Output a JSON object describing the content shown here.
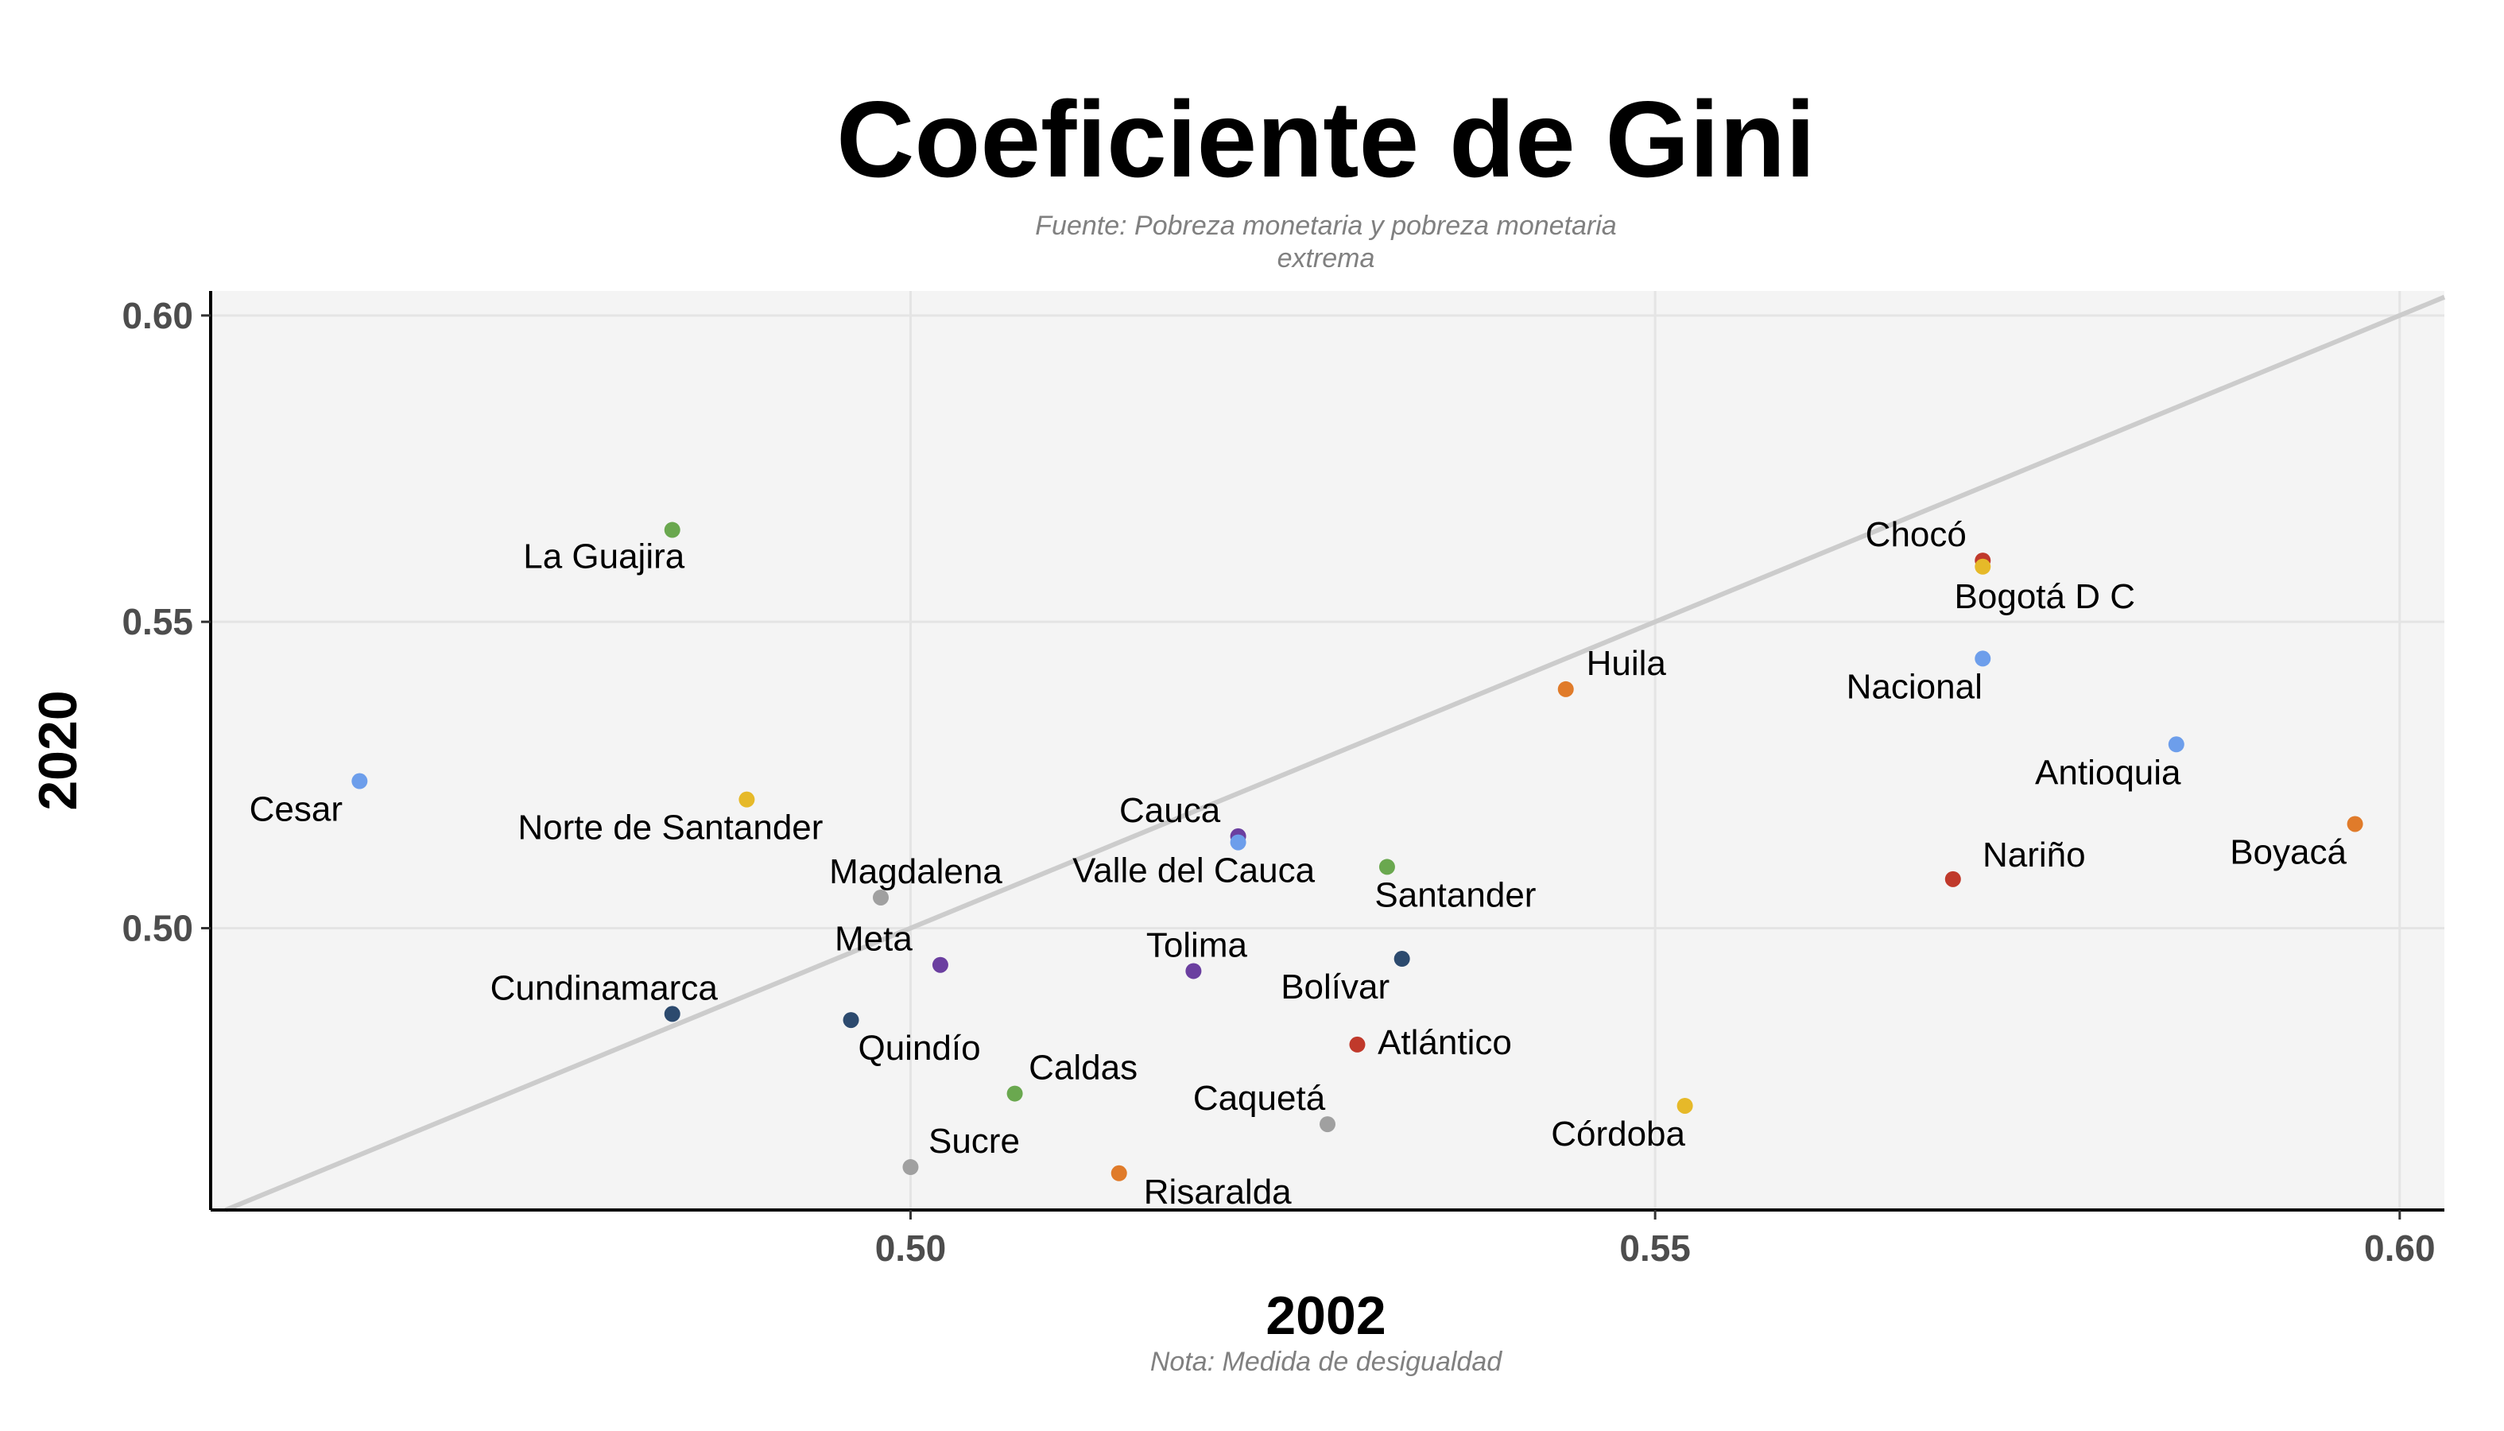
{
  "chart_data": {
    "type": "scatter",
    "title": "Coeficiente de Gini",
    "subtitle_lines": [
      "Fuente: Pobreza monetaria y pobreza monetaria",
      "extrema"
    ],
    "xlabel": "2002",
    "ylabel": "2020",
    "caption": "Nota: Medida de desigualdad",
    "xlim": [
      0.453,
      0.603
    ],
    "ylim": [
      0.454,
      0.604
    ],
    "x_ticks": [
      {
        "value": 0.5,
        "label": "0.50"
      },
      {
        "value": 0.55,
        "label": "0.55"
      },
      {
        "value": 0.6,
        "label": "0.60"
      }
    ],
    "y_ticks": [
      {
        "value": 0.5,
        "label": "0.50"
      },
      {
        "value": 0.55,
        "label": "0.55"
      },
      {
        "value": 0.6,
        "label": "0.60"
      }
    ],
    "grid": true,
    "reference_line": {
      "type": "identity",
      "color": "#cccccc"
    },
    "panel_background": "#f4f4f4",
    "points": [
      {
        "label": "La Guajira",
        "x": 0.484,
        "y": 0.565,
        "color": "#6aa84f"
      },
      {
        "label": "Chocó",
        "x": 0.572,
        "y": 0.56,
        "color": "#c0392b"
      },
      {
        "label": "Bogotá D C",
        "x": 0.572,
        "y": 0.559,
        "color": "#e6b929"
      },
      {
        "label": "Nacional",
        "x": 0.572,
        "y": 0.544,
        "color": "#6d9eeb"
      },
      {
        "label": "Huila",
        "x": 0.544,
        "y": 0.539,
        "color": "#e07b2a"
      },
      {
        "label": "Antioquia",
        "x": 0.585,
        "y": 0.53,
        "color": "#6d9eeb"
      },
      {
        "label": "Cesar",
        "x": 0.463,
        "y": 0.524,
        "color": "#6d9eeb"
      },
      {
        "label": "Norte de Santander",
        "x": 0.489,
        "y": 0.521,
        "color": "#e6b929"
      },
      {
        "label": "Boyacá",
        "x": 0.597,
        "y": 0.517,
        "color": "#e07b2a"
      },
      {
        "label": "Cauca",
        "x": 0.522,
        "y": 0.515,
        "color": "#6b3fa0"
      },
      {
        "label": "Valle del Cauca",
        "x": 0.522,
        "y": 0.514,
        "color": "#6d9eeb"
      },
      {
        "label": "Santander",
        "x": 0.532,
        "y": 0.51,
        "color": "#6aa84f"
      },
      {
        "label": "Nariño",
        "x": 0.57,
        "y": 0.508,
        "color": "#c0392b"
      },
      {
        "label": "Magdalena",
        "x": 0.498,
        "y": 0.505,
        "color": "#a0a0a0"
      },
      {
        "label": "Bolívar",
        "x": 0.533,
        "y": 0.495,
        "color": "#2c4a6e"
      },
      {
        "label": "Meta",
        "x": 0.502,
        "y": 0.494,
        "color": "#6b3fa0"
      },
      {
        "label": "Tolima",
        "x": 0.519,
        "y": 0.493,
        "color": "#6b3fa0"
      },
      {
        "label": "Cundinamarca",
        "x": 0.484,
        "y": 0.486,
        "color": "#2c4a6e"
      },
      {
        "label": "Quindío",
        "x": 0.496,
        "y": 0.485,
        "color": "#2c4a6e"
      },
      {
        "label": "Atlántico",
        "x": 0.53,
        "y": 0.481,
        "color": "#c0392b"
      },
      {
        "label": "Caldas",
        "x": 0.507,
        "y": 0.473,
        "color": "#6aa84f"
      },
      {
        "label": "Córdoba",
        "x": 0.552,
        "y": 0.471,
        "color": "#e6b929"
      },
      {
        "label": "Caquetá",
        "x": 0.528,
        "y": 0.468,
        "color": "#a0a0a0"
      },
      {
        "label": "Sucre",
        "x": 0.5,
        "y": 0.461,
        "color": "#a0a0a0"
      },
      {
        "label": "Risaralda",
        "x": 0.514,
        "y": 0.46,
        "color": "#e07b2a"
      }
    ]
  }
}
